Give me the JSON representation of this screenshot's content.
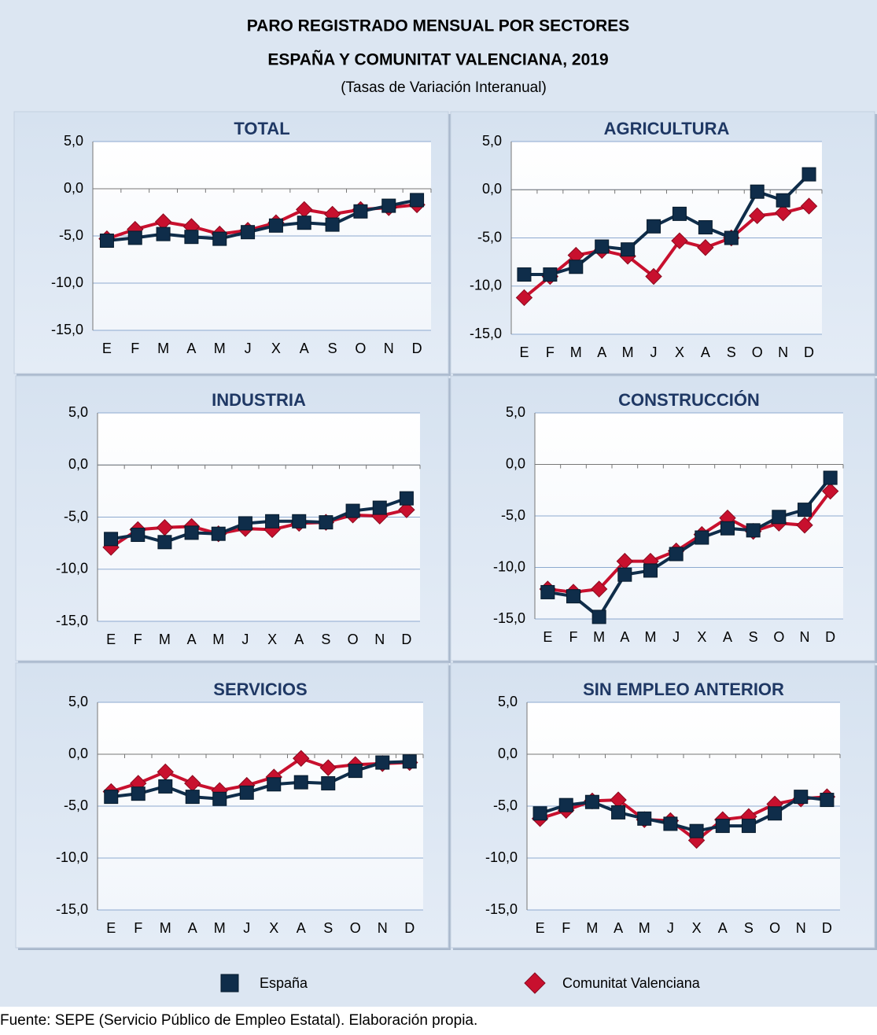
{
  "title": "PARO REGISTRADO MENSUAL POR SECTORES",
  "subtitle": "ESPAÑA Y COMUNITAT VALENCIANA, 2019",
  "note": "(Tasas de Variación Interanual)",
  "source": "Fuente: SEPE (Servicio Público de Empleo Estatal). Elaboración propia.",
  "chart_data": [
    {
      "type": "line",
      "title": "TOTAL",
      "categories": [
        "E",
        "F",
        "M",
        "A",
        "M",
        "J",
        "X",
        "A",
        "S",
        "O",
        "N",
        "D"
      ],
      "series": [
        {
          "name": "España",
          "color": "#0f2d4a",
          "marker": "square",
          "values": [
            -5.5,
            -5.2,
            -4.8,
            -5.1,
            -5.3,
            -4.6,
            -3.9,
            -3.6,
            -3.8,
            -2.4,
            -1.8,
            -1.2
          ]
        },
        {
          "name": "Comunitat Valenciana",
          "color": "#c8102e",
          "marker": "diamond",
          "values": [
            -5.3,
            -4.3,
            -3.5,
            -4.0,
            -4.8,
            -4.4,
            -3.6,
            -2.2,
            -2.7,
            -2.2,
            -2.0,
            -1.7
          ]
        }
      ],
      "ylim": [
        -15,
        5
      ],
      "yticks": [
        {
          "value": -15,
          "label": "-15,0"
        },
        {
          "value": -10,
          "label": "-10,0"
        },
        {
          "value": -5,
          "label": "-5,0"
        },
        {
          "value": 0,
          "label": "0,0"
        },
        {
          "value": 5,
          "label": "5,0"
        }
      ],
      "grid": true
    },
    {
      "type": "line",
      "title": "AGRICULTURA",
      "categories": [
        "E",
        "F",
        "M",
        "A",
        "M",
        "J",
        "X",
        "A",
        "S",
        "O",
        "N",
        "D"
      ],
      "series": [
        {
          "name": "España",
          "color": "#0f2d4a",
          "marker": "square",
          "values": [
            -8.8,
            -8.8,
            -8.0,
            -5.9,
            -6.2,
            -3.8,
            -2.5,
            -3.9,
            -5.0,
            -0.2,
            -1.1,
            1.6
          ]
        },
        {
          "name": "Comunitat Valenciana",
          "color": "#c8102e",
          "marker": "diamond",
          "values": [
            -11.2,
            -9.0,
            -6.8,
            -6.3,
            -6.9,
            -9.0,
            -5.3,
            -6.0,
            -5.0,
            -2.7,
            -2.4,
            -1.7
          ]
        }
      ],
      "ylim": [
        -15,
        5
      ],
      "yticks": [
        {
          "value": -15,
          "label": "-15,0"
        },
        {
          "value": -10,
          "label": "-10,0"
        },
        {
          "value": -5,
          "label": "-5,0"
        },
        {
          "value": 0,
          "label": "0,0"
        },
        {
          "value": 5,
          "label": "5,0"
        }
      ],
      "grid": true
    },
    {
      "type": "line",
      "title": "INDUSTRIA",
      "categories": [
        "E",
        "F",
        "M",
        "A",
        "M",
        "J",
        "X",
        "A",
        "S",
        "O",
        "N",
        "D"
      ],
      "series": [
        {
          "name": "España",
          "color": "#0f2d4a",
          "marker": "square",
          "values": [
            -7.1,
            -6.7,
            -7.4,
            -6.5,
            -6.6,
            -5.6,
            -5.4,
            -5.4,
            -5.5,
            -4.4,
            -4.1,
            -3.2
          ]
        },
        {
          "name": "Comunitat Valenciana",
          "color": "#c8102e",
          "marker": "diamond",
          "values": [
            -7.9,
            -6.2,
            -6.0,
            -5.9,
            -6.6,
            -6.1,
            -6.2,
            -5.6,
            -5.5,
            -4.8,
            -4.9,
            -4.3
          ]
        }
      ],
      "ylim": [
        -15,
        5
      ],
      "yticks": [
        {
          "value": -15,
          "label": "-15,0"
        },
        {
          "value": -10,
          "label": "-10,0"
        },
        {
          "value": -5,
          "label": "-5,0"
        },
        {
          "value": 0,
          "label": "0,0"
        },
        {
          "value": 5,
          "label": "5,0"
        }
      ],
      "grid": true
    },
    {
      "type": "line",
      "title": "CONSTRUCCIÓN",
      "categories": [
        "E",
        "F",
        "M",
        "A",
        "M",
        "J",
        "X",
        "A",
        "S",
        "O",
        "N",
        "D"
      ],
      "series": [
        {
          "name": "España",
          "color": "#0f2d4a",
          "marker": "square",
          "values": [
            -12.4,
            -12.8,
            -14.8,
            -10.7,
            -10.3,
            -8.7,
            -7.1,
            -6.2,
            -6.4,
            -5.1,
            -4.4,
            -1.3
          ]
        },
        {
          "name": "Comunitat Valenciana",
          "color": "#c8102e",
          "marker": "diamond",
          "values": [
            -12.1,
            -12.4,
            -12.1,
            -9.4,
            -9.4,
            -8.4,
            -6.8,
            -5.2,
            -6.5,
            -5.7,
            -5.9,
            -2.6
          ]
        }
      ],
      "ylim": [
        -15,
        5
      ],
      "yticks": [
        {
          "value": -15,
          "label": "-15,0"
        },
        {
          "value": -10,
          "label": "-10,0"
        },
        {
          "value": -5,
          "label": "-5,0"
        },
        {
          "value": 0,
          "label": "0,0"
        },
        {
          "value": 5,
          "label": "5,0"
        }
      ],
      "grid": true
    },
    {
      "type": "line",
      "title": "SERVICIOS",
      "categories": [
        "E",
        "F",
        "M",
        "A",
        "M",
        "J",
        "X",
        "A",
        "S",
        "O",
        "N",
        "D"
      ],
      "series": [
        {
          "name": "España",
          "color": "#0f2d4a",
          "marker": "square",
          "values": [
            -4.1,
            -3.8,
            -3.1,
            -4.1,
            -4.3,
            -3.7,
            -2.9,
            -2.7,
            -2.8,
            -1.6,
            -0.8,
            -0.7
          ]
        },
        {
          "name": "Comunitat Valenciana",
          "color": "#c8102e",
          "marker": "diamond",
          "values": [
            -3.6,
            -2.8,
            -1.7,
            -2.8,
            -3.5,
            -3.0,
            -2.2,
            -0.4,
            -1.3,
            -1.0,
            -0.9,
            -0.8
          ]
        }
      ],
      "ylim": [
        -15,
        5
      ],
      "yticks": [
        {
          "value": -15,
          "label": "-15,0"
        },
        {
          "value": -10,
          "label": "-10,0"
        },
        {
          "value": -5,
          "label": "-5,0"
        },
        {
          "value": 0,
          "label": "0,0"
        },
        {
          "value": 5,
          "label": "5,0"
        }
      ],
      "grid": true
    },
    {
      "type": "line",
      "title": "SIN EMPLEO ANTERIOR",
      "categories": [
        "E",
        "F",
        "M",
        "A",
        "M",
        "J",
        "X",
        "A",
        "S",
        "O",
        "N",
        "D"
      ],
      "series": [
        {
          "name": "España",
          "color": "#0f2d4a",
          "marker": "square",
          "values": [
            -5.7,
            -4.9,
            -4.6,
            -5.6,
            -6.2,
            -6.7,
            -7.4,
            -6.9,
            -6.9,
            -5.7,
            -4.1,
            -4.4
          ]
        },
        {
          "name": "Comunitat Valenciana",
          "color": "#c8102e",
          "marker": "diamond",
          "values": [
            -6.2,
            -5.4,
            -4.5,
            -4.4,
            -6.3,
            -6.4,
            -8.3,
            -6.3,
            -6.0,
            -4.8,
            -4.3,
            -4.1
          ]
        }
      ],
      "ylim": [
        -15,
        5
      ],
      "yticks": [
        {
          "value": -15,
          "label": "-15,0"
        },
        {
          "value": -10,
          "label": "-10,0"
        },
        {
          "value": -5,
          "label": "-5,0"
        },
        {
          "value": 0,
          "label": "0,0"
        },
        {
          "value": 5,
          "label": "5,0"
        }
      ],
      "grid": true
    }
  ]
}
